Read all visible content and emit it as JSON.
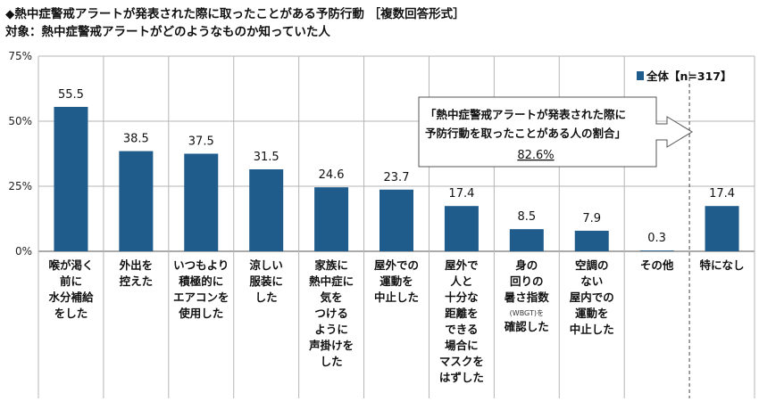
{
  "header": {
    "title": "◆熱中症警戒アラートが発表された際に取ったことがある予防行動 ［複数回答形式］",
    "subtitle": "対象：熱中症警戒アラートがどのようなものか知っていた人"
  },
  "colors": {
    "bar": "#1F5C8C",
    "grid": "#b5b5b5",
    "axis": "#555555"
  },
  "chart_data": {
    "type": "bar",
    "ylim": [
      0,
      75
    ],
    "yticks": [
      0,
      25,
      50,
      75
    ],
    "ytick_labels": [
      "0%",
      "25%",
      "50%",
      "75%"
    ],
    "grid": true,
    "legend_position": "top-right",
    "categories": [
      "喉が渇く前に水分補給をした",
      "外出を控えた",
      "いつもより積極的にエアコンを使用した",
      "涼しい服装にした",
      "家族に熱中症に気をつけるように声掛けをした",
      "屋外での運動を中止した",
      "屋外で人と十分な距離をできる場合にマスクをはずした",
      "身の回りの暑さ指数（WBGT）を確認した",
      "空調のない屋内での運動を中止した",
      "その他",
      "特になし"
    ],
    "category_lines": [
      [
        "喉が渇く",
        "前に",
        "水分補給",
        "をした"
      ],
      [
        "外出を",
        "控えた"
      ],
      [
        "いつもより",
        "積極的に",
        "エアコンを",
        "使用した"
      ],
      [
        "涼しい",
        "服装に",
        "した"
      ],
      [
        "家族に",
        "熱中症に",
        "気を",
        "つける",
        "ように",
        "声掛けを",
        "した"
      ],
      [
        "屋外での",
        "運動を",
        "中止した"
      ],
      [
        "屋外で",
        "人と",
        "十分な",
        "距離を",
        "できる",
        "場合に",
        "マスクを",
        "はずした"
      ],
      [
        "身の",
        "回りの",
        "暑さ指数",
        "(WBGT)を",
        "確認した"
      ],
      [
        "空調の",
        "ない",
        "屋内での",
        "運動を",
        "中止した"
      ],
      [
        "その他"
      ],
      [
        "特になし"
      ]
    ],
    "series": [
      {
        "name": "全体【n=317】",
        "values": [
          55.5,
          38.5,
          37.5,
          31.5,
          24.6,
          23.7,
          17.4,
          8.5,
          7.9,
          0.3,
          17.4
        ]
      }
    ],
    "value_labels": [
      "55.5",
      "38.5",
      "37.5",
      "31.5",
      "24.6",
      "23.7",
      "17.4",
      "8.5",
      "7.9",
      "0.3",
      "17.4"
    ],
    "callout": {
      "line1": "「熱中症警戒アラートが発表された際に",
      "line2": "予防行動を取ったことがある人の割合」",
      "value": "82.6%"
    }
  }
}
